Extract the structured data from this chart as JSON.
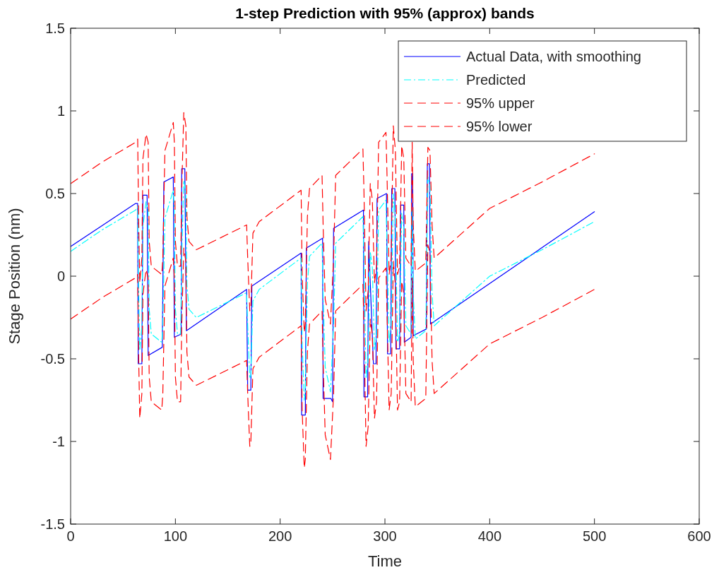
{
  "chart_data": {
    "type": "line",
    "title": "1-step Prediction with 95% (approx) bands",
    "xlabel": "Time",
    "ylabel": "Stage Position (nm)",
    "xlim": [
      0,
      600
    ],
    "ylim": [
      -1.5,
      1.5
    ],
    "xticks": [
      0,
      100,
      200,
      300,
      400,
      500,
      600
    ],
    "yticks": [
      -1.5,
      -1,
      -0.5,
      0,
      0.5,
      1,
      1.5
    ],
    "grid": false,
    "legend": "top right",
    "marker": "none",
    "series": [
      {
        "name": "Actual Data, with smoothing",
        "color": "#0000ff",
        "line_style": "solid",
        "x": [
          0,
          62,
          64,
          64.5,
          68,
          69,
          73,
          74,
          87.5,
          89,
          98,
          99,
          105.5,
          106,
          109,
          110.5,
          168,
          169,
          172,
          173,
          220,
          220.5,
          224,
          225,
          240.5,
          241,
          248.5,
          250,
          251,
          279.5,
          280,
          283.5,
          284.5,
          289,
          291.5,
          292.5,
          301.5,
          302.5,
          305.5,
          306.5,
          309.5,
          310.5,
          314,
          315,
          318,
          318.5,
          325,
          325.5,
          326.5,
          327,
          339.5,
          340.5,
          342.5,
          343.5,
          500
        ],
        "values": [
          0.18,
          0.44,
          0.44,
          -0.53,
          -0.53,
          0.49,
          0.49,
          -0.48,
          -0.43,
          0.57,
          0.6,
          -0.37,
          -0.35,
          0.65,
          0.65,
          -0.33,
          -0.08,
          -0.69,
          -0.69,
          -0.06,
          0.14,
          -0.84,
          -0.84,
          0.17,
          0.23,
          -0.74,
          -0.74,
          -0.76,
          0.29,
          0.4,
          -0.73,
          -0.73,
          0.21,
          -0.53,
          -0.53,
          0.47,
          0.5,
          -0.47,
          -0.47,
          0.53,
          0.53,
          -0.44,
          -0.44,
          0.43,
          0.43,
          -0.4,
          -0.37,
          0.62,
          0.62,
          -0.36,
          -0.32,
          0.68,
          0.68,
          -0.29,
          0.39
        ]
      },
      {
        "name": "Predicted",
        "color": "#00ffff",
        "line_style": "dashdot",
        "x": [
          0,
          30,
          62,
          64,
          65,
          66,
          68,
          69,
          72,
          74,
          75,
          77,
          87,
          88,
          90,
          98,
          99,
          100,
          102,
          105,
          106,
          108,
          110,
          111,
          113,
          120,
          168,
          169,
          171,
          172,
          174,
          180,
          220,
          221,
          223,
          224,
          226,
          228,
          240,
          241,
          243,
          248,
          251,
          253,
          279,
          280,
          282,
          284,
          286,
          288,
          290,
          292,
          294,
          301,
          302,
          304,
          306,
          308,
          310,
          312,
          314,
          316,
          318,
          320,
          325,
          326,
          327,
          329,
          339,
          341,
          343,
          345,
          347,
          400,
          450,
          500
        ],
        "values": [
          0.15,
          0.28,
          0.4,
          0.42,
          -0.1,
          -0.45,
          -0.3,
          0.3,
          0.45,
          0.4,
          -0.2,
          -0.35,
          -0.4,
          -0.3,
          0.35,
          0.52,
          0.4,
          -0.2,
          -0.35,
          -0.35,
          0.1,
          0.58,
          0.5,
          -0.05,
          -0.2,
          -0.25,
          -0.1,
          -0.3,
          -0.62,
          -0.6,
          -0.15,
          -0.08,
          0.11,
          -0.4,
          -0.75,
          -0.7,
          -0.05,
          0.12,
          0.2,
          -0.1,
          -0.55,
          -0.7,
          -0.3,
          0.2,
          0.36,
          0.1,
          -0.62,
          -0.5,
          0.15,
          0.05,
          -0.45,
          -0.35,
          0.4,
          0.46,
          0.2,
          -0.4,
          -0.3,
          0.5,
          0.35,
          -0.4,
          -0.35,
          0.38,
          0.3,
          -0.3,
          -0.35,
          0.4,
          -0.1,
          -0.38,
          -0.33,
          0.6,
          0.55,
          -0.1,
          -0.3,
          0.0,
          0.16,
          0.33
        ]
      },
      {
        "name": "95% upper",
        "color": "#ff0000",
        "line_style": "dashed",
        "x": [
          0,
          30,
          62,
          64,
          65,
          66,
          68,
          69,
          72,
          74,
          75,
          77,
          87,
          88,
          90,
          98,
          99,
          100,
          102,
          105,
          106,
          108,
          110,
          111,
          113,
          120,
          168,
          169,
          171,
          172,
          174,
          180,
          220,
          221,
          223,
          224,
          226,
          228,
          240,
          241,
          243,
          248,
          251,
          253,
          279,
          280,
          282,
          284,
          286,
          288,
          290,
          292,
          294,
          301,
          302,
          304,
          306,
          308,
          310,
          312,
          314,
          316,
          318,
          320,
          325,
          326,
          327,
          329,
          339,
          341,
          343,
          345,
          347,
          400,
          450,
          500
        ],
        "values": [
          0.56,
          0.69,
          0.81,
          0.83,
          0.31,
          -0.04,
          0.11,
          0.71,
          0.86,
          0.81,
          0.21,
          0.06,
          0.01,
          0.11,
          0.76,
          0.93,
          0.81,
          0.21,
          0.06,
          0.06,
          0.51,
          0.99,
          0.91,
          0.36,
          0.21,
          0.16,
          0.31,
          0.11,
          -0.21,
          -0.19,
          0.26,
          0.33,
          0.52,
          0.01,
          -0.34,
          -0.29,
          0.36,
          0.53,
          0.61,
          0.31,
          -0.14,
          -0.29,
          0.11,
          0.61,
          0.77,
          0.51,
          -0.21,
          -0.09,
          0.56,
          0.46,
          -0.04,
          0.06,
          0.81,
          0.87,
          0.61,
          0.01,
          0.11,
          0.91,
          0.76,
          0.01,
          0.06,
          0.79,
          0.71,
          0.11,
          0.06,
          0.81,
          0.31,
          0.03,
          0.08,
          0.78,
          0.76,
          0.31,
          0.11,
          0.41,
          0.57,
          0.74
        ]
      },
      {
        "name": "95% lower",
        "color": "#ff0000",
        "line_style": "dashed",
        "x": [
          0,
          30,
          62,
          64,
          65,
          66,
          68,
          69,
          72,
          74,
          75,
          77,
          87,
          88,
          90,
          98,
          99,
          100,
          102,
          105,
          106,
          108,
          110,
          111,
          113,
          120,
          168,
          169,
          171,
          172,
          174,
          180,
          220,
          221,
          223,
          224,
          226,
          228,
          240,
          241,
          243,
          248,
          251,
          253,
          279,
          280,
          282,
          284,
          286,
          288,
          290,
          292,
          294,
          301,
          302,
          304,
          306,
          308,
          310,
          312,
          314,
          316,
          318,
          320,
          325,
          326,
          327,
          329,
          339,
          341,
          343,
          345,
          347,
          400,
          450,
          500
        ],
        "values": [
          -0.26,
          -0.13,
          -0.01,
          0.01,
          -0.51,
          -0.86,
          -0.71,
          -0.11,
          0.04,
          -0.01,
          -0.61,
          -0.76,
          -0.81,
          -0.71,
          -0.06,
          0.11,
          -0.01,
          -0.61,
          -0.76,
          -0.76,
          -0.31,
          0.17,
          0.09,
          -0.46,
          -0.61,
          -0.66,
          -0.51,
          -0.71,
          -1.03,
          -1.01,
          -0.56,
          -0.49,
          -0.3,
          -0.81,
          -1.16,
          -1.11,
          -0.46,
          -0.29,
          -0.21,
          -0.51,
          -0.96,
          -1.11,
          -0.71,
          -0.21,
          -0.05,
          -0.31,
          -1.03,
          -0.91,
          -0.26,
          -0.36,
          -0.86,
          -0.76,
          -0.01,
          0.05,
          -0.21,
          -0.81,
          -0.71,
          0.09,
          -0.06,
          -0.81,
          -0.76,
          -0.03,
          -0.11,
          -0.71,
          -0.76,
          -0.01,
          -0.51,
          -0.79,
          -0.74,
          0.19,
          0.14,
          -0.51,
          -0.71,
          -0.41,
          -0.25,
          -0.08
        ]
      }
    ]
  }
}
